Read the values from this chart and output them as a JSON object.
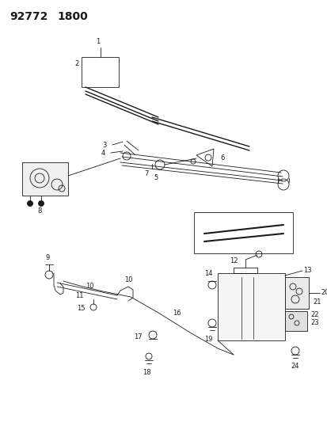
{
  "title1": "92772",
  "title2": "1800",
  "bg_color": "#ffffff",
  "lc": "#1a1a1a",
  "figsize": [
    4.14,
    5.33
  ],
  "dpi": 100,
  "fs_title": 10,
  "fs_label": 6.0
}
